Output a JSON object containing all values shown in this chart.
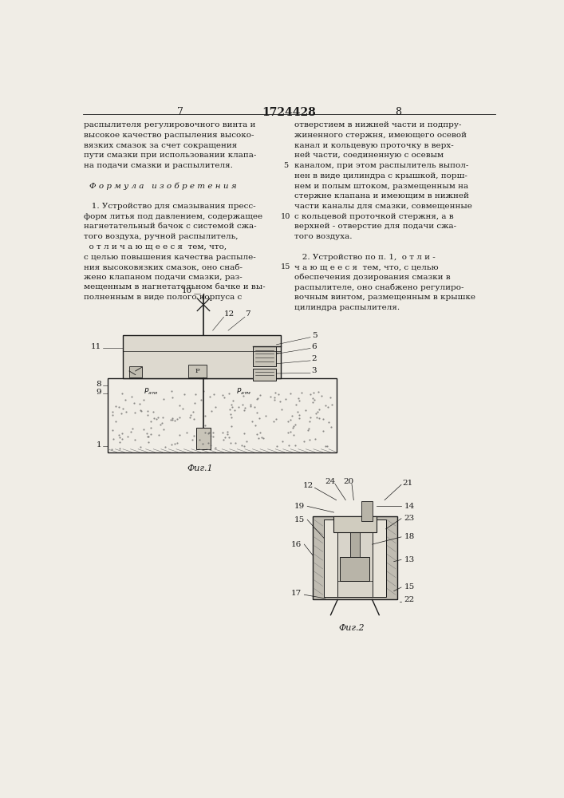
{
  "page_title": "1724428",
  "page_left": "7",
  "page_right": "8",
  "bg_color": "#f0ede6",
  "text_color": "#1a1a1a",
  "left_col_lines": [
    "распылителя регулировочного винта и",
    "высокое качество распыления высоко-",
    "вязких смазок за счет сокращения",
    "пути смазки при использовании клапа-",
    "на подачи смазки и распылителя.",
    "",
    "Ф о р м у л а   и з о б р е т е н и я",
    "",
    "   1. Устройство для смазывания пресс-",
    "форм литья под давлением, содержащее",
    "нагнетательный бачок с системой сжа-",
    "того воздуха, ручной распылитель,",
    "  о т л и ч а ю щ е е с я  тем, что,",
    "с целью повышения качества распыле-",
    "ния высоковязких смазок, оно снаб-",
    "жено клапаном подачи смазки, раз-",
    "мещенным в нагнетательном бачке и вы-",
    "полненным в виде полого корпуса с"
  ],
  "right_col_lines": [
    "отверстием в нижней части и подпру-",
    "жиненного стержня, имеющего осевой",
    "канал и кольцевую проточку в верх-",
    "ней части, соединенную с осевым",
    "каналом, при этом распылитель выпол-",
    "нен в виде цилиндра с крышкой, порш-",
    "нем и полым штоком, размещенным на",
    "стержне клапана и имеющим в нижней",
    "части каналы для смазки, совмещенные",
    "с кольцевой проточкой стержня, а в",
    "верхней - отверстие для подачи сжа-",
    "того воздуха.",
    "",
    "   2. Устройство по п. 1,  о т л и -",
    "ч а ю щ е е с я  тем, что, с целью",
    "обеспечения дозирования смазки в",
    "распылителе, оно снабжено регулиро-",
    "вочным винтом, размещенным в крышке",
    "цилиндра распылителя."
  ],
  "fig1_caption": "Фиг.1",
  "fig2_caption": "Фиг.2"
}
